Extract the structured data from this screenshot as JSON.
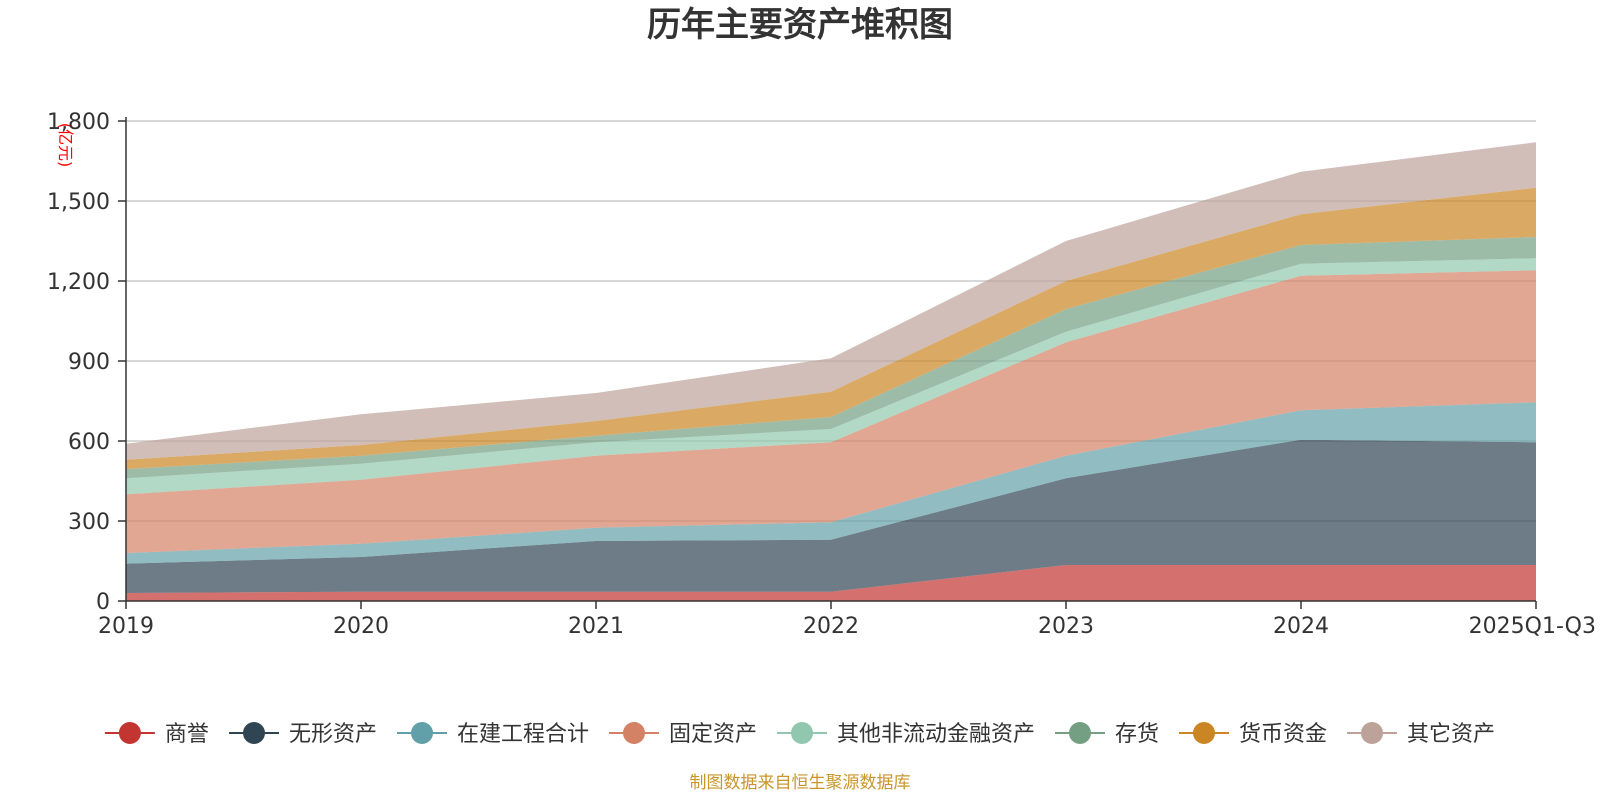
{
  "chart_data": {
    "type": "area",
    "stacked": true,
    "title": "历年主要资产堆积图",
    "ylabel": "(亿元)",
    "xlabel": "",
    "categories": [
      "2019",
      "2020",
      "2021",
      "2022",
      "2023",
      "2024",
      "2025Q1-Q3"
    ],
    "ylim": [
      0,
      1800
    ],
    "yticks": [
      0,
      300,
      600,
      900,
      1200,
      1500,
      1800
    ],
    "ytick_labels": [
      "0",
      "300",
      "600",
      "900",
      "1,200",
      "1,500",
      "1,800"
    ],
    "grid": true,
    "legend_position": "bottom",
    "series": [
      {
        "name": "商誉",
        "color": "#c23531",
        "values": [
          30,
          35,
          35,
          35,
          135,
          135,
          135
        ]
      },
      {
        "name": "无形资产",
        "color": "#2f4554",
        "values": [
          110,
          130,
          190,
          195,
          325,
          470,
          460
        ]
      },
      {
        "name": "在建工程合计",
        "color": "#61a0a8",
        "values": [
          40,
          50,
          50,
          65,
          85,
          110,
          150
        ]
      },
      {
        "name": "固定资产",
        "color": "#d48265",
        "values": [
          220,
          240,
          270,
          300,
          425,
          505,
          495
        ]
      },
      {
        "name": "其他非流动金融资产",
        "color": "#91c7ae",
        "values": [
          60,
          60,
          50,
          50,
          40,
          45,
          45
        ]
      },
      {
        "name": "存货",
        "color": "#749f83",
        "values": [
          35,
          30,
          25,
          45,
          85,
          70,
          80
        ]
      },
      {
        "name": "货币资金",
        "color": "#ca8622",
        "values": [
          35,
          40,
          55,
          95,
          105,
          115,
          185
        ]
      },
      {
        "name": "其它资产",
        "color": "#bda29a",
        "values": [
          60,
          115,
          105,
          125,
          150,
          160,
          170
        ]
      }
    ],
    "source_note": "制图数据来自恒生聚源数据库"
  }
}
